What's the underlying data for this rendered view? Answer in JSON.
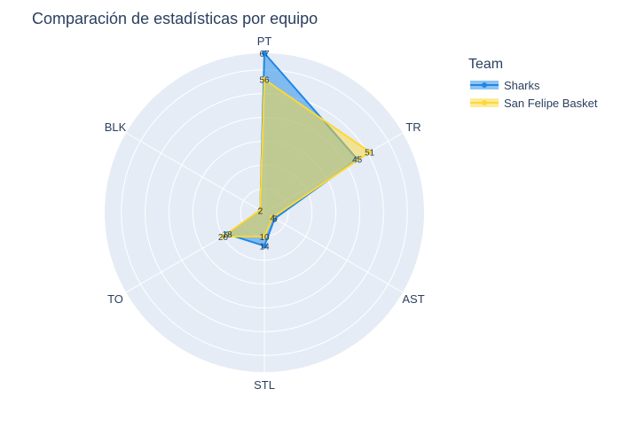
{
  "chart_data": {
    "type": "radar",
    "title": "Comparación de estadísticas por equipo",
    "legend_title": "Team",
    "legend_position": "top-right",
    "categories": [
      "PT",
      "TR",
      "AST",
      "STL",
      "TO",
      "BLK"
    ],
    "radial_range": [
      0,
      67
    ],
    "series": [
      {
        "name": "Sharks",
        "values": [
          67,
          45,
          5,
          14,
          18,
          2
        ],
        "color": "#1e88e5",
        "fill": "rgba(30,136,229,0.5)"
      },
      {
        "name": "San Felipe Basket",
        "values": [
          56,
          51,
          4,
          10,
          20,
          2
        ],
        "color": "#fdd835",
        "fill": "rgba(253,216,53,0.5)"
      }
    ]
  },
  "colors": {
    "polar_bg": "#e5ecf6",
    "grid": "#ffffff"
  }
}
